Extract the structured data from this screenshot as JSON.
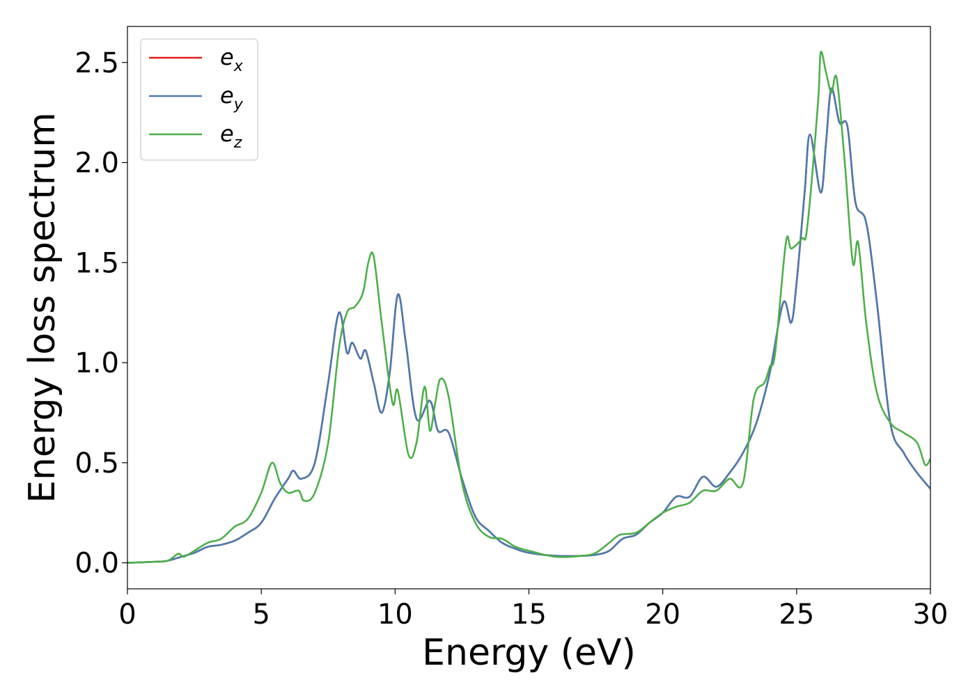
{
  "chart_data": {
    "type": "line",
    "xlabel": "Energy (eV)",
    "ylabel": "Energy loss spectrum",
    "xlim": [
      0,
      30
    ],
    "ylim": [
      -0.13,
      2.68
    ],
    "xticks": [
      "0",
      "5",
      "10",
      "15",
      "20",
      "25",
      "30"
    ],
    "yticks": [
      "0.0",
      "0.5",
      "1.0",
      "1.5",
      "2.0",
      "2.5"
    ],
    "grid": false,
    "legend_position": "top-left",
    "series": [
      {
        "name": "e_x",
        "legend_base": "e",
        "legend_sub": "x",
        "color": "#e41a1c",
        "x": [
          0,
          1,
          1.5,
          2,
          2.5,
          3,
          3.5,
          4,
          4.5,
          5,
          5.5,
          6,
          6.2,
          6.5,
          7,
          7.5,
          7.9,
          8.2,
          8.4,
          8.7,
          8.9,
          9.2,
          9.5,
          9.8,
          10.1,
          10.4,
          10.8,
          11.3,
          11.6,
          12,
          12.5,
          13,
          13.5,
          14,
          14.5,
          15,
          16,
          17,
          17.5,
          18,
          18.5,
          19,
          19.5,
          20,
          20.5,
          21,
          21.5,
          22,
          22.5,
          23,
          23.5,
          24,
          24.5,
          24.8,
          25,
          25.3,
          25.5,
          25.9,
          26.1,
          26.3,
          26.6,
          26.9,
          27.2,
          27.6,
          28,
          28.5,
          29,
          29.5,
          30
        ],
        "values": [
          0,
          0.005,
          0.01,
          0.03,
          0.05,
          0.08,
          0.09,
          0.11,
          0.15,
          0.2,
          0.32,
          0.42,
          0.46,
          0.42,
          0.5,
          0.9,
          1.25,
          1.05,
          1.1,
          1.02,
          1.06,
          0.9,
          0.75,
          0.95,
          1.34,
          1.1,
          0.72,
          0.81,
          0.66,
          0.65,
          0.42,
          0.23,
          0.16,
          0.1,
          0.07,
          0.05,
          0.035,
          0.035,
          0.04,
          0.06,
          0.12,
          0.14,
          0.2,
          0.25,
          0.33,
          0.33,
          0.43,
          0.38,
          0.45,
          0.55,
          0.7,
          0.95,
          1.3,
          1.2,
          1.4,
          1.85,
          2.14,
          1.85,
          2.1,
          2.37,
          2.2,
          2.18,
          1.8,
          1.7,
          1.3,
          0.7,
          0.55,
          0.45,
          0.37
        ]
      },
      {
        "name": "e_y",
        "legend_base": "e",
        "legend_sub": "y",
        "color": "#4a7bb0",
        "x": [
          0,
          1,
          1.5,
          2,
          2.5,
          3,
          3.5,
          4,
          4.5,
          5,
          5.5,
          6,
          6.2,
          6.5,
          7,
          7.5,
          7.9,
          8.2,
          8.4,
          8.7,
          8.9,
          9.2,
          9.5,
          9.8,
          10.1,
          10.4,
          10.8,
          11.3,
          11.6,
          12,
          12.5,
          13,
          13.5,
          14,
          14.5,
          15,
          16,
          17,
          17.5,
          18,
          18.5,
          19,
          19.5,
          20,
          20.5,
          21,
          21.5,
          22,
          22.5,
          23,
          23.5,
          24,
          24.5,
          24.8,
          25,
          25.3,
          25.5,
          25.9,
          26.1,
          26.3,
          26.6,
          26.9,
          27.2,
          27.6,
          28,
          28.5,
          29,
          29.5,
          30
        ],
        "values": [
          0,
          0.005,
          0.01,
          0.03,
          0.05,
          0.08,
          0.09,
          0.11,
          0.15,
          0.2,
          0.32,
          0.42,
          0.46,
          0.42,
          0.5,
          0.9,
          1.25,
          1.05,
          1.1,
          1.02,
          1.06,
          0.9,
          0.75,
          0.95,
          1.34,
          1.1,
          0.72,
          0.81,
          0.66,
          0.65,
          0.42,
          0.23,
          0.16,
          0.1,
          0.07,
          0.05,
          0.035,
          0.035,
          0.04,
          0.06,
          0.12,
          0.14,
          0.2,
          0.25,
          0.33,
          0.33,
          0.43,
          0.38,
          0.45,
          0.55,
          0.7,
          0.95,
          1.3,
          1.2,
          1.4,
          1.85,
          2.14,
          1.85,
          2.1,
          2.37,
          2.2,
          2.18,
          1.8,
          1.7,
          1.3,
          0.7,
          0.55,
          0.45,
          0.37
        ]
      },
      {
        "name": "e_z",
        "legend_base": "e",
        "legend_sub": "z",
        "color": "#4daf4a",
        "x": [
          0,
          1,
          1.5,
          1.9,
          2.1,
          2.5,
          3,
          3.5,
          4,
          4.5,
          5,
          5.4,
          5.7,
          6,
          6.4,
          6.6,
          7,
          7.5,
          7.9,
          8.2,
          8.5,
          8.8,
          9,
          9.2,
          9.5,
          9.9,
          10.1,
          10.5,
          10.8,
          11.1,
          11.3,
          11.5,
          11.7,
          12,
          12.5,
          13,
          13.5,
          14,
          14.5,
          15,
          16,
          17,
          17.5,
          18,
          18.4,
          19,
          19.5,
          20,
          20.5,
          21,
          21.5,
          22,
          22.5,
          23,
          23.4,
          23.8,
          24,
          24.2,
          24.6,
          24.8,
          25.2,
          25.4,
          25.8,
          25.9,
          26.1,
          26.3,
          26.5,
          26.8,
          27.1,
          27.3,
          27.6,
          28,
          28.5,
          29,
          29.5,
          29.8,
          30
        ],
        "values": [
          0,
          0.005,
          0.01,
          0.045,
          0.03,
          0.06,
          0.1,
          0.12,
          0.18,
          0.22,
          0.35,
          0.5,
          0.4,
          0.35,
          0.36,
          0.31,
          0.35,
          0.6,
          1.07,
          1.25,
          1.28,
          1.35,
          1.5,
          1.53,
          1.2,
          0.8,
          0.86,
          0.54,
          0.6,
          0.88,
          0.66,
          0.8,
          0.92,
          0.83,
          0.4,
          0.2,
          0.13,
          0.12,
          0.08,
          0.06,
          0.03,
          0.035,
          0.05,
          0.1,
          0.14,
          0.15,
          0.2,
          0.25,
          0.28,
          0.3,
          0.36,
          0.36,
          0.42,
          0.4,
          0.82,
          0.9,
          0.98,
          1.05,
          1.6,
          1.57,
          1.62,
          1.68,
          2.3,
          2.55,
          2.45,
          2.35,
          2.42,
          2.0,
          1.5,
          1.6,
          1.2,
          0.85,
          0.7,
          0.65,
          0.6,
          0.49,
          0.52
        ]
      }
    ]
  }
}
